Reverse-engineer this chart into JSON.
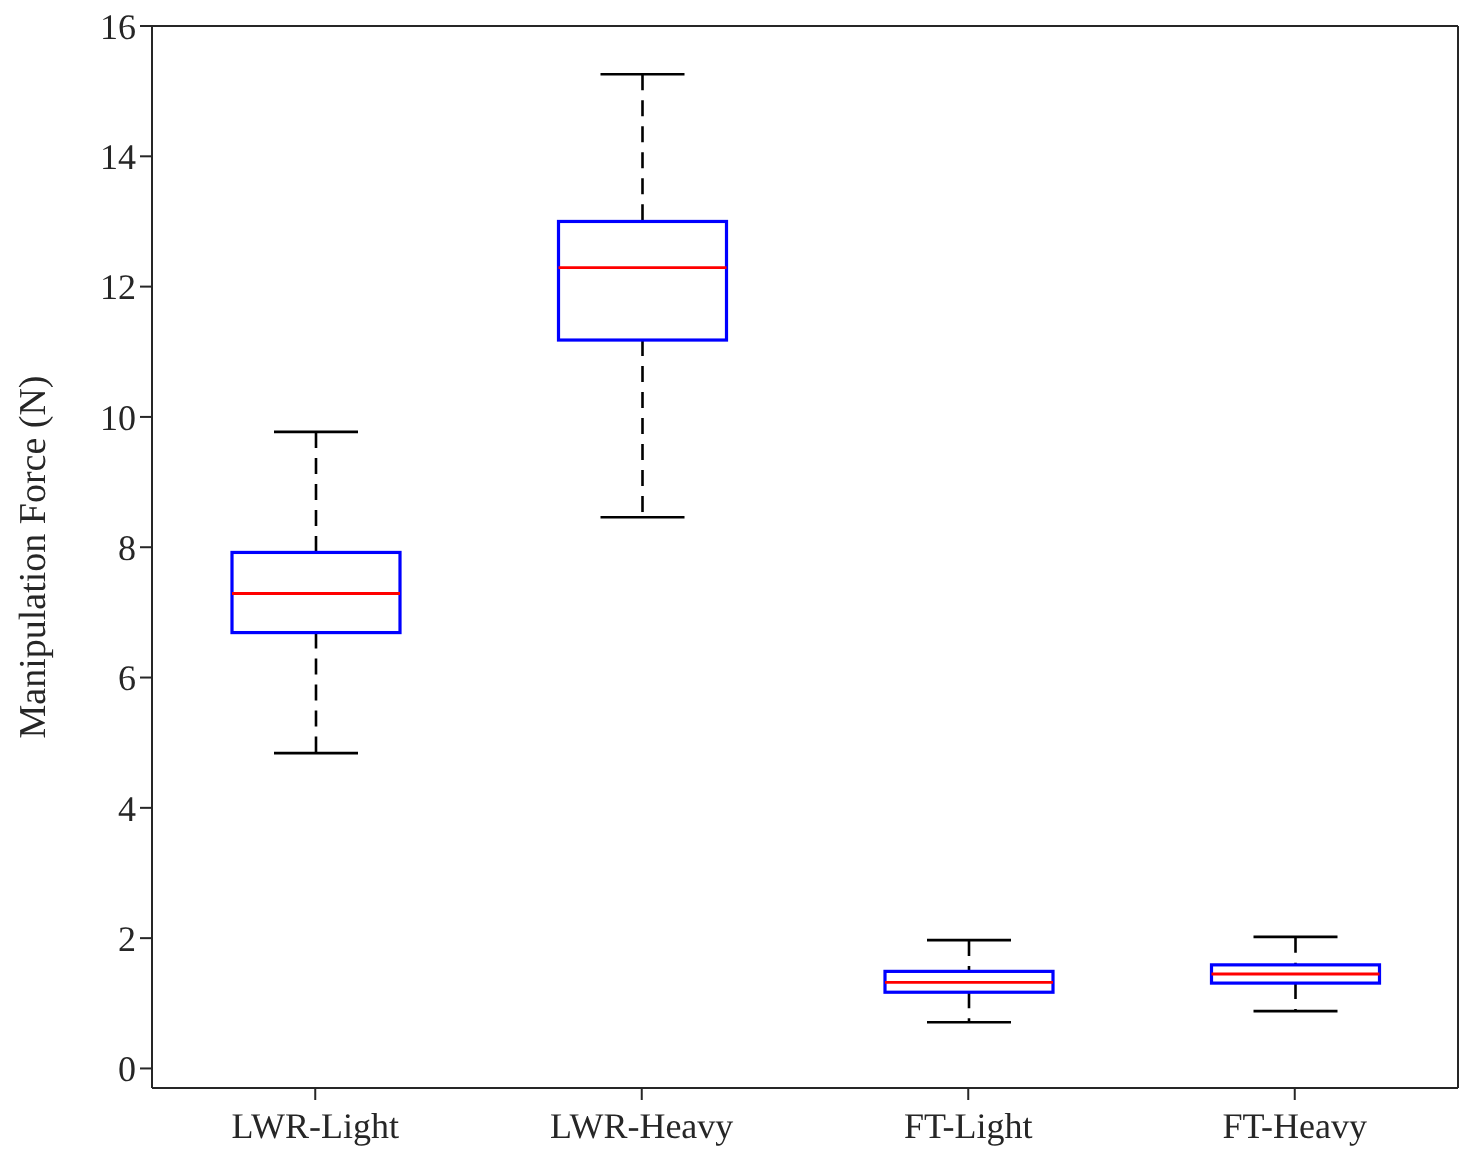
{
  "chart_data": {
    "type": "box",
    "ylabel": "Manipulation Force (N)",
    "categories": [
      "LWR-Light",
      "LWR-Heavy",
      "FT-Light",
      "FT-Heavy"
    ],
    "series": [
      {
        "color": "#0000ff",
        "boxes": [
          {
            "low": 4.84,
            "q1": 6.69,
            "median": 7.29,
            "q3": 7.92,
            "high": 9.77
          },
          {
            "low": 8.46,
            "q1": 11.18,
            "median": 12.29,
            "q3": 13.0,
            "high": 15.26
          },
          {
            "low": 0.71,
            "q1": 1.17,
            "median": 1.32,
            "q3": 1.49,
            "high": 1.97
          },
          {
            "low": 0.88,
            "q1": 1.31,
            "median": 1.45,
            "q3": 1.59,
            "high": 2.02
          }
        ]
      }
    ],
    "ylim": [
      -0.3,
      16
    ],
    "yticks": [
      0,
      2,
      4,
      6,
      8,
      10,
      12,
      14,
      16
    ],
    "grid": false
  }
}
